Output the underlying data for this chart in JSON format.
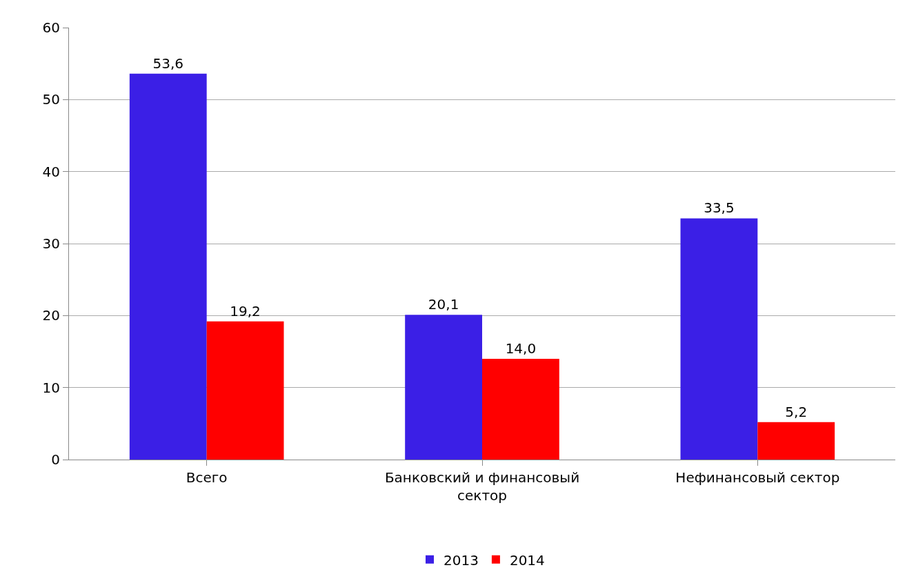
{
  "chart_data": {
    "type": "bar",
    "categories": [
      "Всего",
      "Банковский и финансовый сектор",
      "Нефинансовый сектор"
    ],
    "series": [
      {
        "name": "2013",
        "color": "#3b1fe6",
        "values": [
          53.6,
          20.1,
          33.5
        ],
        "value_labels": [
          "53,6",
          "20,1",
          "33,5"
        ]
      },
      {
        "name": "2014",
        "color": "#ff0000",
        "values": [
          19.2,
          14.0,
          5.2
        ],
        "value_labels": [
          "19,2",
          "14,0",
          "5,2"
        ]
      }
    ],
    "ylim": [
      0,
      60
    ],
    "yticks": [
      0,
      10,
      20,
      30,
      40,
      50,
      60
    ],
    "grid": "y",
    "legend": "bottom"
  }
}
